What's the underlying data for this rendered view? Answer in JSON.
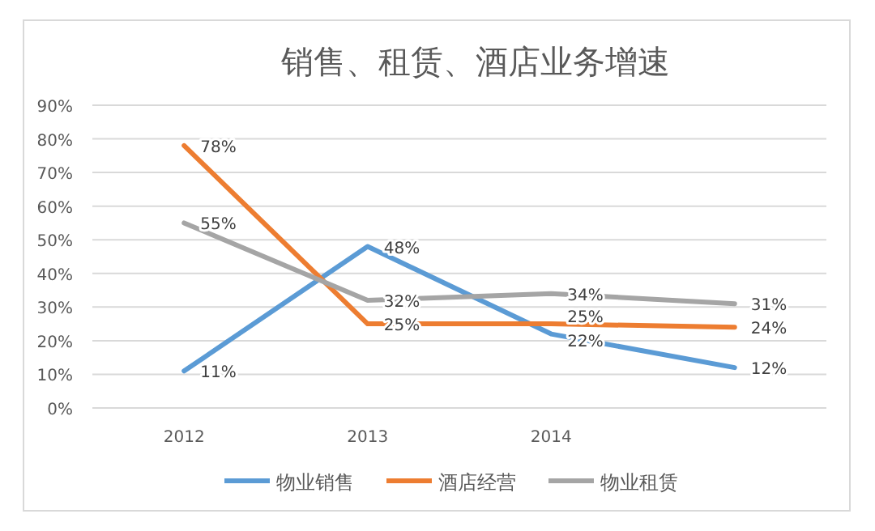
{
  "chart_data": {
    "type": "line",
    "title": "销售、租赁、酒店业务增速",
    "categories": [
      "2012",
      "2013",
      "2014",
      null
    ],
    "series": [
      {
        "name": "物业销售",
        "color": "#5b9bd5",
        "values": [
          11,
          48,
          22,
          12
        ],
        "value_labels": [
          "11%",
          "48%",
          "22%",
          "12%"
        ]
      },
      {
        "name": "酒店经营",
        "color": "#ed7d31",
        "values": [
          78,
          25,
          25,
          24
        ],
        "value_labels": [
          "78%",
          "25%",
          "25%",
          "24%"
        ]
      },
      {
        "name": "物业租赁",
        "color": "#a5a5a5",
        "values": [
          55,
          32,
          34,
          31
        ],
        "value_labels": [
          "55%",
          "32%",
          "34%",
          "31%"
        ]
      }
    ],
    "ylim": [
      0,
      90
    ],
    "yticks": [
      {
        "value": 0,
        "label": "0%"
      },
      {
        "value": 10,
        "label": "10%"
      },
      {
        "value": 20,
        "label": "20%"
      },
      {
        "value": 30,
        "label": "30%"
      },
      {
        "value": 40,
        "label": "40%"
      },
      {
        "value": 50,
        "label": "50%"
      },
      {
        "value": 60,
        "label": "60%"
      },
      {
        "value": 70,
        "label": "70%"
      },
      {
        "value": 80,
        "label": "80%"
      },
      {
        "value": 90,
        "label": "90%"
      }
    ],
    "grid": "y",
    "legend": "bottom",
    "marker": "none",
    "line_style": "solid"
  }
}
